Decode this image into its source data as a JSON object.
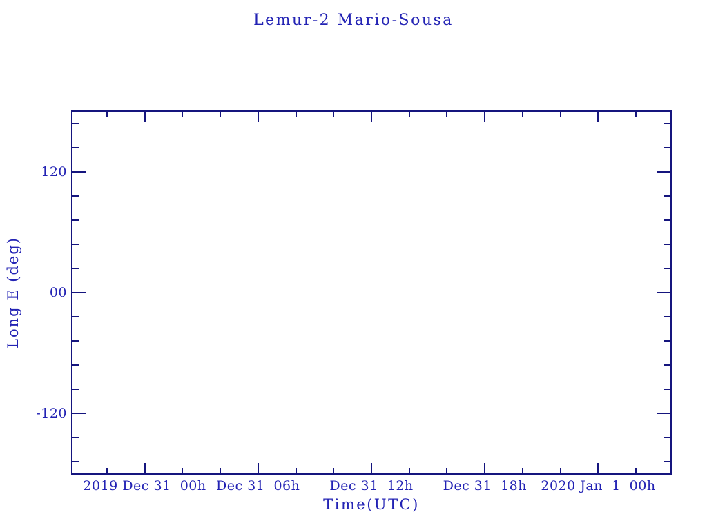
{
  "title": "Lemur-2 Mario-Sousa",
  "colors": {
    "background": "#ffffff",
    "axis_line": "#15157e",
    "text": "#2323b4"
  },
  "chart_data": {
    "type": "line",
    "title": "Lemur-2 Mario-Sousa",
    "xlabel": "Time(UTC)",
    "ylabel": "Long E (deg)",
    "grid": false,
    "legend": "none",
    "series": [],
    "x_axis": {
      "major_ticks": [
        {
          "pos": 0.1207,
          "label": "2019 Dec 31  00h"
        },
        {
          "pos": 0.3103,
          "label": "Dec 31  06h"
        },
        {
          "pos": 0.5,
          "label": "Dec 31  12h"
        },
        {
          "pos": 0.6897,
          "label": "Dec 31  18h"
        },
        {
          "pos": 0.8793,
          "label": "2020 Jan  1  00h"
        }
      ],
      "minor_tick_pos": [
        0.0575,
        0.1839,
        0.2471,
        0.3736,
        0.4368,
        0.5632,
        0.6264,
        0.7529,
        0.8161,
        0.9425
      ],
      "minor_step_hours": 2,
      "major_step_hours": 6
    },
    "y_axis": {
      "lim": [
        -180,
        180
      ],
      "major_ticks": [
        {
          "value": 120,
          "label": "120"
        },
        {
          "value": 0,
          "label": "00"
        },
        {
          "value": -120,
          "label": "-120"
        }
      ],
      "minor_tick_values": [
        168,
        144,
        96,
        72,
        48,
        24,
        -24,
        -48,
        -72,
        -96,
        -144,
        -168
      ],
      "minor_step_deg": 24
    }
  }
}
